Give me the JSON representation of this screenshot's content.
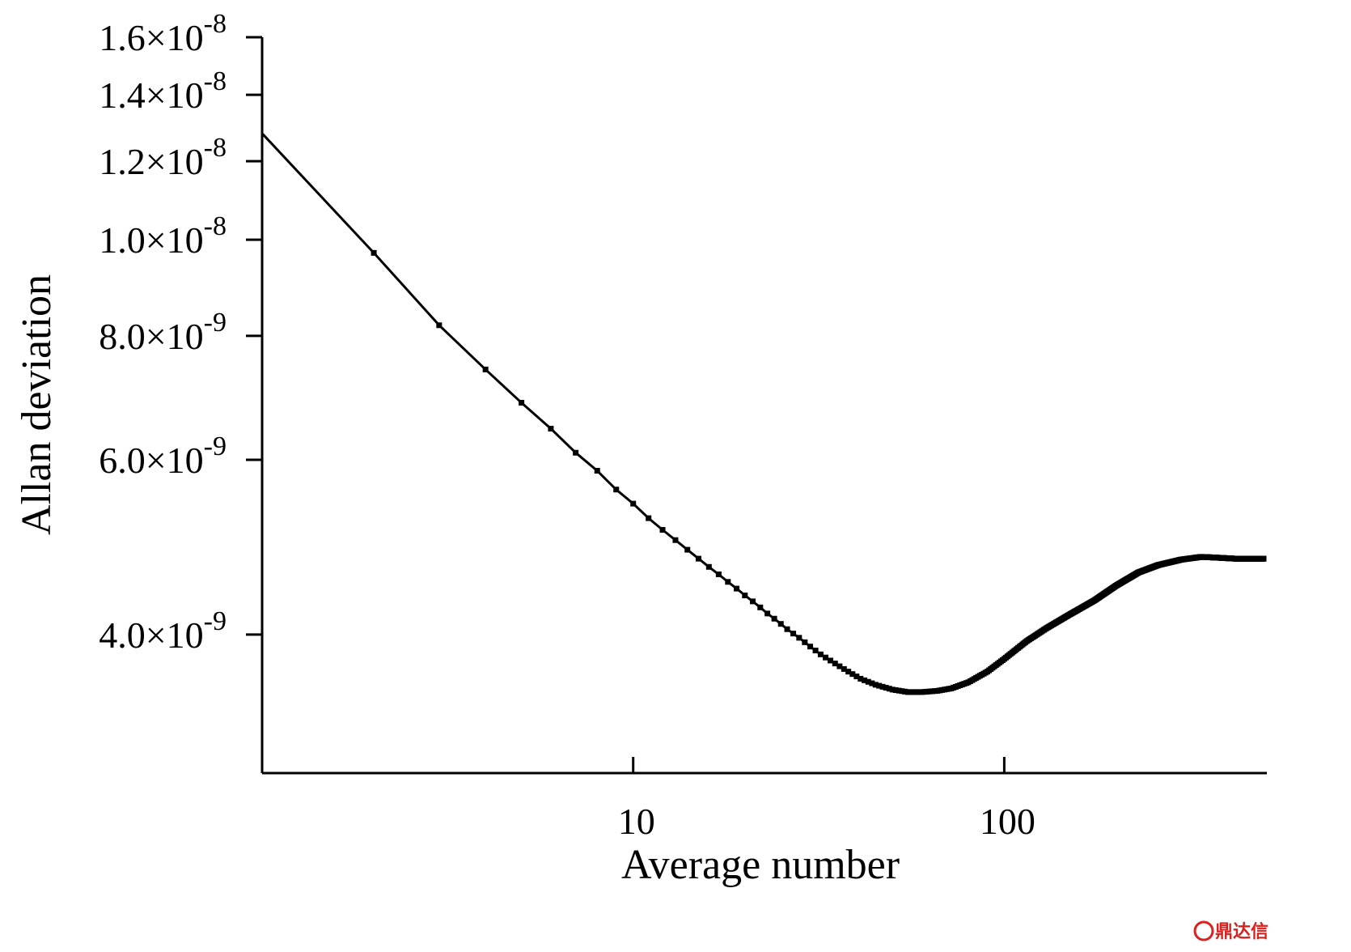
{
  "chart_data": {
    "type": "line",
    "title": "",
    "xlabel": "Average number",
    "ylabel": "Allan deviation",
    "x_scale": "log",
    "y_scale": "log",
    "xlim": [
      1,
      500
    ],
    "ylim": [
      2.9e-09,
      1.6e-08
    ],
    "grid": false,
    "legend": "none",
    "x_ticks": [
      {
        "value": 10,
        "label": "10"
      },
      {
        "value": 100,
        "label": "100"
      }
    ],
    "y_ticks": [
      {
        "value": 4e-09,
        "mantissa": "4.0",
        "exponent": "-9"
      },
      {
        "value": 6e-09,
        "mantissa": "6.0",
        "exponent": "-9"
      },
      {
        "value": 8e-09,
        "mantissa": "8.0",
        "exponent": "-9"
      },
      {
        "value": 1e-08,
        "mantissa": "1.0",
        "exponent": "-8"
      },
      {
        "value": 1.2e-08,
        "mantissa": "1.2",
        "exponent": "-8"
      },
      {
        "value": 1.4e-08,
        "mantissa": "1.4",
        "exponent": "-8"
      },
      {
        "value": 1.6e-08,
        "mantissa": "1.6",
        "exponent": "-8"
      }
    ],
    "times_sign": "×",
    "tick_base": "10",
    "series": [
      {
        "color": "#000000",
        "marker": "square",
        "points": [
          [
            1,
            1.28e-08
          ],
          [
            2,
            9.7e-09
          ],
          [
            3,
            8.2e-09
          ],
          [
            4,
            7.4e-09
          ],
          [
            5,
            6.85e-09
          ],
          [
            6,
            6.45e-09
          ],
          [
            7,
            6.1e-09
          ],
          [
            8,
            5.85e-09
          ],
          [
            9,
            5.6e-09
          ],
          [
            10,
            5.42e-09
          ],
          [
            11,
            5.24e-09
          ],
          [
            12,
            5.1e-09
          ],
          [
            13,
            4.98e-09
          ],
          [
            14,
            4.87e-09
          ],
          [
            15,
            4.77e-09
          ],
          [
            16,
            4.68e-09
          ],
          [
            17,
            4.6e-09
          ],
          [
            18,
            4.52e-09
          ],
          [
            19,
            4.45e-09
          ],
          [
            20,
            4.38e-09
          ],
          [
            21,
            4.32e-09
          ],
          [
            22,
            4.26e-09
          ],
          [
            23,
            4.2e-09
          ],
          [
            24,
            4.15e-09
          ],
          [
            25,
            4.1e-09
          ],
          [
            26,
            4.05e-09
          ],
          [
            28,
            3.97e-09
          ],
          [
            30,
            3.89e-09
          ],
          [
            32,
            3.82e-09
          ],
          [
            35,
            3.74e-09
          ],
          [
            38,
            3.67e-09
          ],
          [
            41,
            3.61e-09
          ],
          [
            45,
            3.56e-09
          ],
          [
            50,
            3.52e-09
          ],
          [
            55,
            3.5e-09
          ],
          [
            60,
            3.5e-09
          ],
          [
            66,
            3.51e-09
          ],
          [
            72,
            3.53e-09
          ],
          [
            80,
            3.58e-09
          ],
          [
            90,
            3.67e-09
          ],
          [
            100,
            3.78e-09
          ],
          [
            115,
            3.94e-09
          ],
          [
            130,
            4.06e-09
          ],
          [
            150,
            4.19e-09
          ],
          [
            175,
            4.33e-09
          ],
          [
            200,
            4.48e-09
          ],
          [
            230,
            4.62e-09
          ],
          [
            260,
            4.7e-09
          ],
          [
            300,
            4.76e-09
          ],
          [
            340,
            4.79e-09
          ],
          [
            380,
            4.78e-09
          ],
          [
            420,
            4.77e-09
          ],
          [
            460,
            4.77e-09
          ],
          [
            500,
            4.77e-09
          ]
        ]
      }
    ]
  },
  "watermark": {
    "text": "鼎达信",
    "color": "#d9211e"
  }
}
